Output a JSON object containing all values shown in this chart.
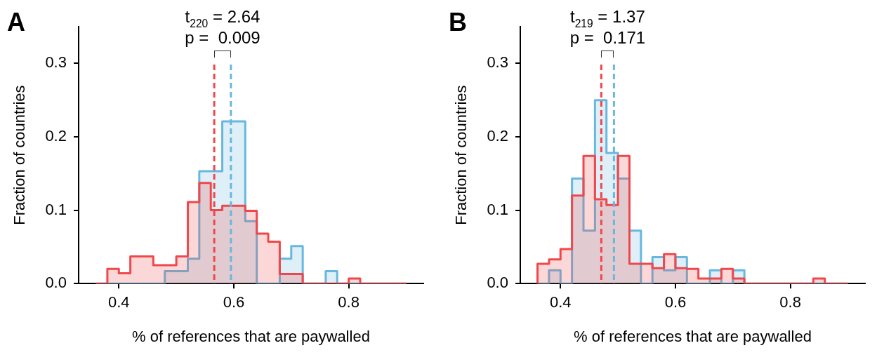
{
  "chart_data": [
    {
      "type": "histogram",
      "title": "A",
      "xlabel": "% of references that are paywalled",
      "ylabel": "Fraction of countries",
      "bins": [
        0.36,
        0.38,
        0.4,
        0.42,
        0.44,
        0.46,
        0.48,
        0.5,
        0.52,
        0.54,
        0.56,
        0.58,
        0.6,
        0.62,
        0.64,
        0.66,
        0.68,
        0.7,
        0.72,
        0.74,
        0.76,
        0.78,
        0.8,
        0.82,
        0.84,
        0.86,
        0.88,
        0.9
      ],
      "series": [
        {
          "color": "#f0474b",
          "values": [
            0,
            0.02,
            0.014,
            0.037,
            0.037,
            0.025,
            0.025,
            0.037,
            0.111,
            0.137,
            0.1,
            0.106,
            0.106,
            0.099,
            0.068,
            0.057,
            0.013,
            0.013,
            0,
            0,
            0,
            0,
            0.007,
            0,
            0,
            0,
            0
          ]
        },
        {
          "color": "#67b8de",
          "values": [
            0,
            0,
            0,
            0,
            0,
            0,
            0.017,
            0.017,
            0.034,
            0.153,
            0.153,
            0.221,
            0.221,
            0.085,
            0,
            0,
            0.034,
            0.051,
            0,
            0,
            0.017,
            0,
            0,
            0,
            0,
            0,
            0
          ]
        }
      ],
      "xlim": [
        0.33,
        0.93
      ],
      "ylim": [
        0,
        0.35
      ],
      "xticks": [
        0.4,
        0.6,
        0.8
      ],
      "yticks": [
        {
          "value": 0,
          "label": "0.0"
        },
        0.1,
        0.2,
        0.3
      ],
      "ref_lines": [
        {
          "axis": "x",
          "value": 0.566,
          "color": "#f0474b",
          "line_style": "dashed"
        },
        {
          "axis": "x",
          "value": 0.595,
          "color": "#67b8de",
          "line_style": "dashed"
        }
      ],
      "annotations": [
        "t$_{220}$ = 2.64",
        "p =  0.009"
      ],
      "grid": false,
      "legend": false
    },
    {
      "type": "histogram",
      "title": "B",
      "xlabel": "% of references that are paywalled",
      "ylabel": "Fraction of countries",
      "bins": [
        0.36,
        0.38,
        0.4,
        0.42,
        0.44,
        0.46,
        0.48,
        0.5,
        0.52,
        0.54,
        0.56,
        0.58,
        0.6,
        0.62,
        0.64,
        0.66,
        0.68,
        0.7,
        0.72,
        0.74,
        0.76,
        0.78,
        0.8,
        0.82,
        0.84,
        0.86,
        0.88,
        0.9
      ],
      "series": [
        {
          "color": "#f0474b",
          "values": [
            0.027,
            0.033,
            0.047,
            0.12,
            0.174,
            0.115,
            0.107,
            0.174,
            0.027,
            0.027,
            0.021,
            0.04,
            0.021,
            0.02,
            0.007,
            0.007,
            0.02,
            0.007,
            0,
            0,
            0,
            0,
            0,
            0,
            0.007,
            0,
            0
          ]
        },
        {
          "color": "#67b8de",
          "values": [
            0,
            0.018,
            0,
            0.143,
            0.072,
            0.25,
            0.178,
            0.143,
            0.072,
            0,
            0.036,
            0.018,
            0.036,
            0,
            0,
            0.018,
            0,
            0.018,
            0,
            0,
            0,
            0,
            0,
            0,
            0,
            0,
            0
          ]
        }
      ],
      "xlim": [
        0.33,
        0.93
      ],
      "ylim": [
        0,
        0.35
      ],
      "xticks": [
        0.4,
        0.6,
        0.8
      ],
      "yticks": [
        {
          "value": 0,
          "label": "0.0"
        },
        0.1,
        0.2,
        0.3
      ],
      "ref_lines": [
        {
          "axis": "x",
          "value": 0.471,
          "color": "#f0474b",
          "line_style": "dashed"
        },
        {
          "axis": "x",
          "value": 0.493,
          "color": "#67b8de",
          "line_style": "dashed"
        }
      ],
      "annotations": [
        "t$_{219}$ = 1.37",
        "p =  0.171"
      ],
      "grid": false,
      "legend": false
    }
  ]
}
